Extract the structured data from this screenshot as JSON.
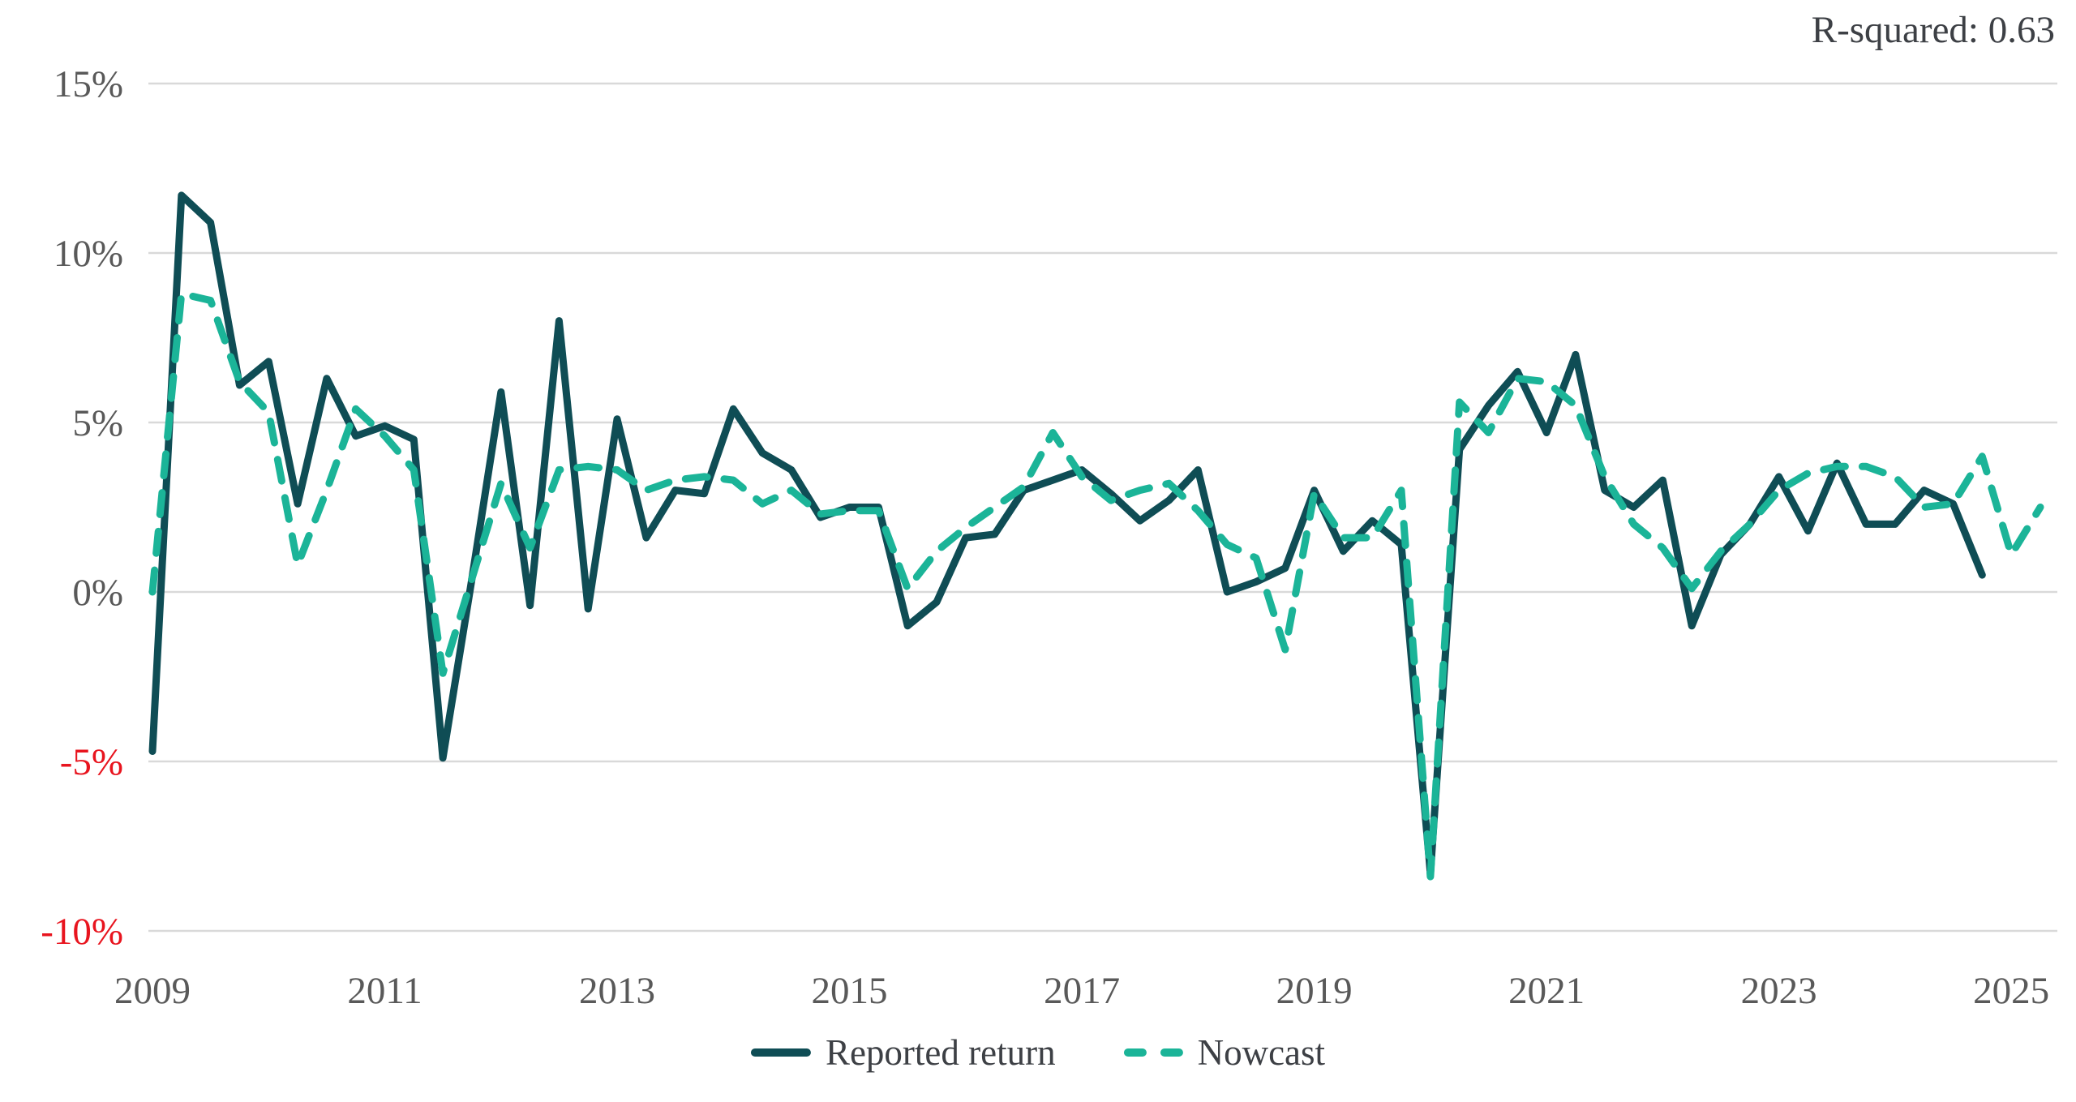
{
  "annotation": {
    "r_squared": "R-squared: 0.63"
  },
  "legend": [
    {
      "label": "Reported return",
      "style": "solid",
      "color": "#0f4d55"
    },
    {
      "label": "Nowcast",
      "style": "dashed",
      "color": "#1bb498"
    }
  ],
  "colors": {
    "reported": "#0f4d55",
    "nowcast": "#1bb498",
    "gridline": "#d9d9d9",
    "tick_gray": "#595959",
    "tick_red": "#e8141e",
    "text_dark": "#3d4045",
    "background": "#ffffff"
  },
  "chart_data": {
    "type": "line",
    "title": "",
    "xlabel": "",
    "ylabel": "",
    "grid": "horizontal",
    "legend_position": "bottom-center",
    "ylim": [
      -10,
      15
    ],
    "y_ticks": [
      {
        "label": "15%",
        "value": 15,
        "color": "#595959"
      },
      {
        "label": "10%",
        "value": 10,
        "color": "#595959"
      },
      {
        "label": "5%",
        "value": 5,
        "color": "#595959"
      },
      {
        "label": "0%",
        "value": 0,
        "color": "#595959"
      },
      {
        "label": "-5%",
        "value": -5,
        "color": "#e8141e"
      },
      {
        "label": "-10%",
        "value": -10,
        "color": "#e8141e"
      }
    ],
    "x_ticks": [
      {
        "label": "2009",
        "year": 2009
      },
      {
        "label": "2011",
        "year": 2011
      },
      {
        "label": "2013",
        "year": 2013
      },
      {
        "label": "2015",
        "year": 2015
      },
      {
        "label": "2017",
        "year": 2017
      },
      {
        "label": "2019",
        "year": 2019
      },
      {
        "label": "2021",
        "year": 2021
      },
      {
        "label": "2023",
        "year": 2023
      },
      {
        "label": "2025",
        "year": 2025
      }
    ],
    "x": [
      "2009Q1",
      "2009Q2",
      "2009Q3",
      "2009Q4",
      "2010Q1",
      "2010Q2",
      "2010Q3",
      "2010Q4",
      "2011Q1",
      "2011Q2",
      "2011Q3",
      "2011Q4",
      "2012Q1",
      "2012Q2",
      "2012Q3",
      "2012Q4",
      "2013Q1",
      "2013Q2",
      "2013Q3",
      "2013Q4",
      "2014Q1",
      "2014Q2",
      "2014Q3",
      "2014Q4",
      "2015Q1",
      "2015Q2",
      "2015Q3",
      "2015Q4",
      "2016Q1",
      "2016Q2",
      "2016Q3",
      "2016Q4",
      "2017Q1",
      "2017Q2",
      "2017Q3",
      "2017Q4",
      "2018Q1",
      "2018Q2",
      "2018Q3",
      "2018Q4",
      "2019Q1",
      "2019Q2",
      "2019Q3",
      "2019Q4",
      "2020Q1",
      "2020Q2",
      "2020Q3",
      "2020Q4",
      "2021Q1",
      "2021Q2",
      "2021Q3",
      "2021Q4",
      "2022Q1",
      "2022Q2",
      "2022Q3",
      "2022Q4",
      "2023Q1",
      "2023Q2",
      "2023Q3",
      "2023Q4",
      "2024Q1",
      "2024Q2",
      "2024Q3",
      "2024Q4",
      "2025Q1",
      "2025Q2"
    ],
    "series": [
      {
        "name": "Reported return",
        "style": "solid",
        "color": "#0f4d55",
        "values": [
          -4.7,
          11.7,
          10.9,
          6.1,
          6.8,
          2.6,
          6.3,
          4.6,
          4.9,
          4.5,
          -4.9,
          0.4,
          5.9,
          -0.4,
          8.0,
          -0.5,
          5.1,
          1.6,
          3.0,
          2.9,
          5.4,
          4.1,
          3.6,
          2.2,
          2.5,
          2.5,
          -1.0,
          -0.3,
          1.6,
          1.7,
          3.0,
          3.3,
          3.6,
          2.9,
          2.1,
          2.7,
          3.6,
          0.0,
          0.3,
          0.7,
          3.0,
          1.2,
          2.1,
          1.4,
          -8.3,
          4.2,
          5.5,
          6.5,
          4.7,
          7.0,
          3.0,
          2.5,
          3.3,
          -1.0,
          1.1,
          2.0,
          3.4,
          1.8,
          3.8,
          2.0,
          2.0,
          3.0,
          2.6,
          0.5,
          null,
          null
        ]
      },
      {
        "name": "Nowcast",
        "style": "dashed",
        "color": "#1bb498",
        "values": [
          0.0,
          8.8,
          8.6,
          6.2,
          5.3,
          0.8,
          3.0,
          5.4,
          4.6,
          3.6,
          -2.4,
          0.4,
          3.2,
          1.3,
          3.6,
          3.7,
          3.6,
          3.0,
          3.3,
          3.4,
          3.3,
          2.6,
          3.0,
          2.3,
          2.4,
          2.4,
          0.1,
          1.2,
          1.9,
          2.5,
          3.1,
          4.7,
          3.4,
          2.7,
          3.0,
          3.2,
          2.4,
          1.4,
          1.0,
          -1.7,
          2.9,
          1.6,
          1.6,
          3.0,
          -8.4,
          5.6,
          4.7,
          6.3,
          6.2,
          5.5,
          3.4,
          2.0,
          1.3,
          0.1,
          1.2,
          2.0,
          3.0,
          3.5,
          3.7,
          3.7,
          3.4,
          2.5,
          2.6,
          4.0,
          1.1,
          2.5
        ]
      }
    ]
  }
}
